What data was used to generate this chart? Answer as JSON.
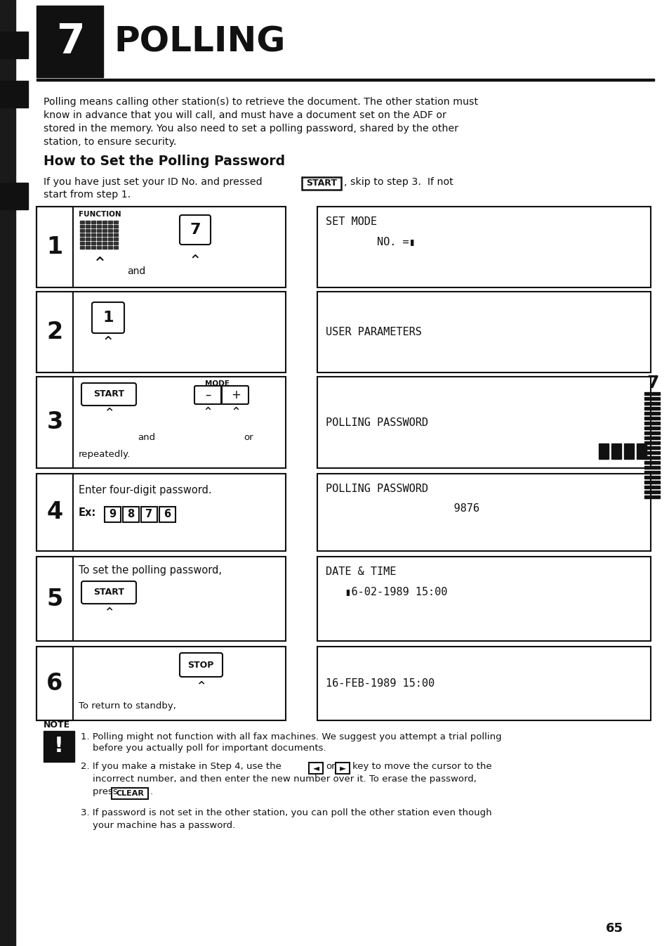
{
  "bg_color": "#ffffff",
  "page_number": "65",
  "side_number": "7",
  "intro_text1": "Polling means calling other station(s) to retrieve the document. The other station must",
  "intro_text2": "know in advance that you will call, and must have a document set on the ADF or",
  "intro_text3": "stored in the memory. You also need to set a polling password, shared by the other",
  "intro_text4": "station, to ensure security.",
  "subtitle": "How to Set the Polling Password",
  "instr1": "If you have just set your ID No. and pressed",
  "instr2": ", skip to step 3.  If not",
  "instr3": "start from step 1.",
  "step1_display_line1": "SET MODE",
  "step1_display_line2": "        NO. =▮",
  "step2_display": "USER PARAMETERS",
  "step3_display_line1": "POLLING PASSWORD",
  "step4_display_line1": "POLLING PASSWORD",
  "step4_display_line2": "                    9876",
  "step5_display_line1": "DATE & TIME",
  "step5_display_line2": "   ▮6-02-1989 15:00",
  "step6_display": "16-FEB-1989 15:00",
  "note1a": "1. Polling might not function with all fax machines. We suggest you attempt a trial polling",
  "note1b": "    before you actually poll for important documents.",
  "note2a": "2. If you make a mistake in Step 4, use the",
  "note2b": "key to move the cursor to the",
  "note2c": "    incorrect number, and then enter the new number over it. To erase the password,",
  "note2d": "    press",
  "note3a": "3. If password is not set in the other station, you can poll the other station even though",
  "note3b": "    your machine has a password."
}
